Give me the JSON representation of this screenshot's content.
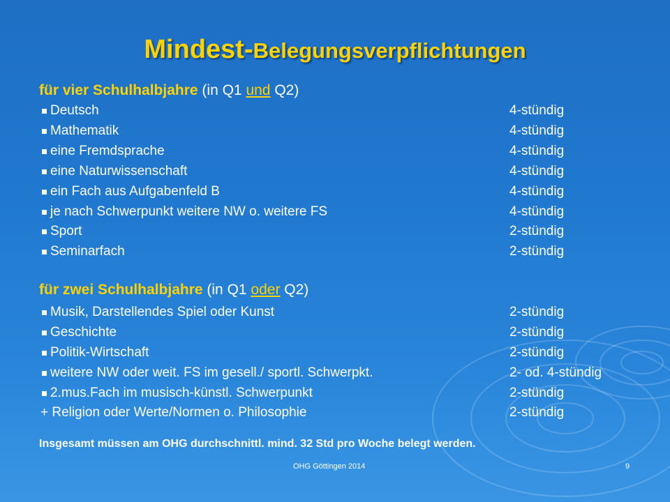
{
  "title": {
    "part1": "Mindest-",
    "part2": "Belegungsverpflichtungen"
  },
  "section1": {
    "heading_bold": "für vier Schulhalbjahre",
    "heading_paren_open": " (in Q1 ",
    "heading_underlined": "und",
    "heading_paren_close": " Q2)",
    "items": [
      {
        "subject": "Deutsch",
        "hours": "4-stündig"
      },
      {
        "subject": "Mathematik",
        "hours": "4-stündig"
      },
      {
        "subject": "eine Fremdsprache",
        "hours": "4-stündig"
      },
      {
        "subject": "eine Naturwissenschaft",
        "hours": "4-stündig"
      },
      {
        "subject": "ein Fach aus Aufgabenfeld B",
        "hours": "4-stündig"
      },
      {
        "subject": "je nach Schwerpunkt weitere NW o. weitere FS",
        "hours": "4-stündig"
      },
      {
        "subject": "Sport",
        "hours": "2-stündig"
      },
      {
        "subject": "Seminarfach",
        "hours": "2-stündig"
      }
    ]
  },
  "section2": {
    "heading_bold": "für zwei Schulhalbjahre",
    "heading_paren_open": " (in Q1 ",
    "heading_underlined": "oder",
    "heading_paren_close": " Q2)",
    "items": [
      {
        "subject": "Musik, Darstellendes Spiel oder Kunst",
        "hours": "2-stündig"
      },
      {
        "subject": "Geschichte",
        "hours": "2-stündig"
      },
      {
        "subject": "Politik-Wirtschaft",
        "hours": "2-stündig"
      },
      {
        "subject": "weitere NW oder weit. FS im gesell./ sportl. Schwerpkt.",
        "hours": "2- od. 4-stündig"
      },
      {
        "subject": "2.mus.Fach im musisch-künstl. Schwerpunkt",
        "hours": "2-stündig"
      }
    ],
    "extra": {
      "subject": "+ Religion oder Werte/Normen o. Philosophie",
      "hours": "2-stündig"
    }
  },
  "note": "Insgesamt müssen am OHG durchschnittl. mind. 32 Std pro Woche belegt werden.",
  "footer": {
    "left": "OHG Göttingen 2014",
    "page": "9"
  },
  "colors": {
    "accent": "#ffd200",
    "background": "#2079cf",
    "text": "#ffffff"
  }
}
